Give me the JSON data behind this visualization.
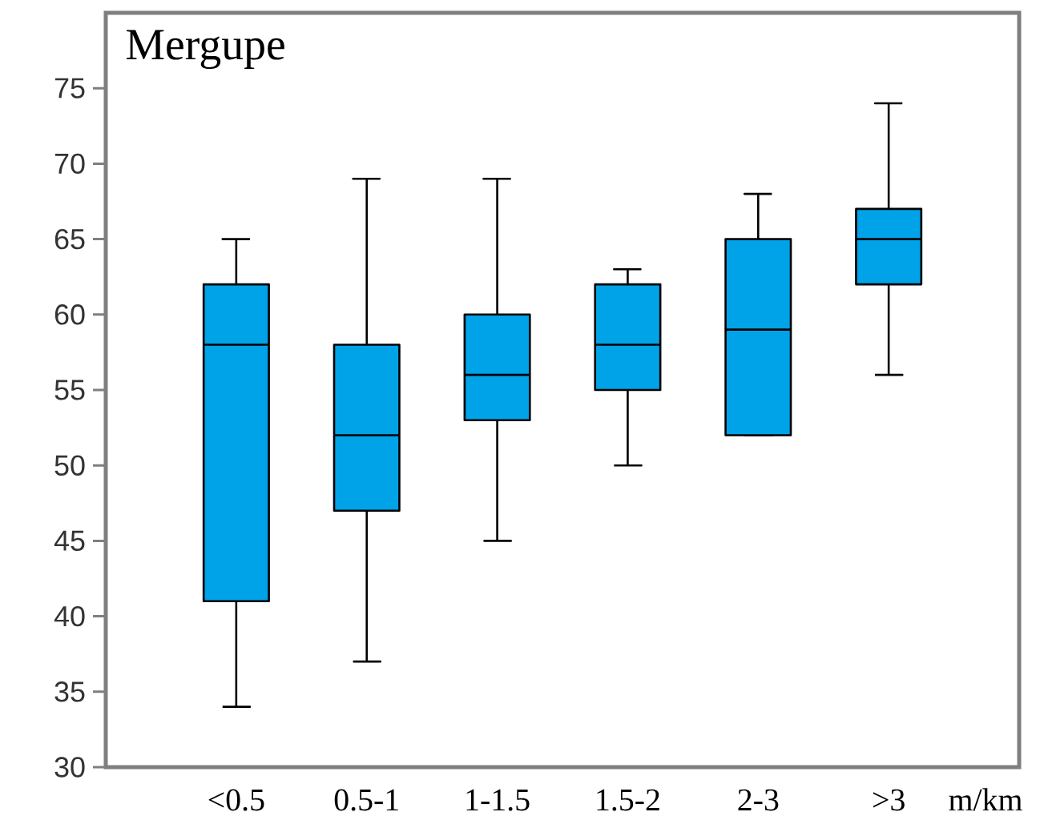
{
  "chart_data": {
    "type": "box",
    "title": "Mergupe",
    "xlabel": "m/km",
    "categories": [
      "<0.5",
      "0.5-1",
      "1-1.5",
      "1.5-2",
      "2-3",
      ">3"
    ],
    "boxes": [
      {
        "low": 34,
        "q1": 41,
        "median": 58,
        "q3": 62,
        "high": 65
      },
      {
        "low": 37,
        "q1": 47,
        "median": 52,
        "q3": 58,
        "high": 69
      },
      {
        "low": 45,
        "q1": 53,
        "median": 56,
        "q3": 60,
        "high": 69
      },
      {
        "low": 50,
        "q1": 55,
        "median": 58,
        "q3": 62,
        "high": 63
      },
      {
        "low": 52,
        "q1": 52,
        "median": 59,
        "q3": 65,
        "high": 68
      },
      {
        "low": 56,
        "q1": 62,
        "median": 65,
        "q3": 67,
        "high": 74
      }
    ],
    "color": "#00a2e8",
    "ylim": [
      30,
      80
    ],
    "yticks": [
      30,
      35,
      40,
      45,
      50,
      55,
      60,
      65,
      70,
      75
    ]
  }
}
